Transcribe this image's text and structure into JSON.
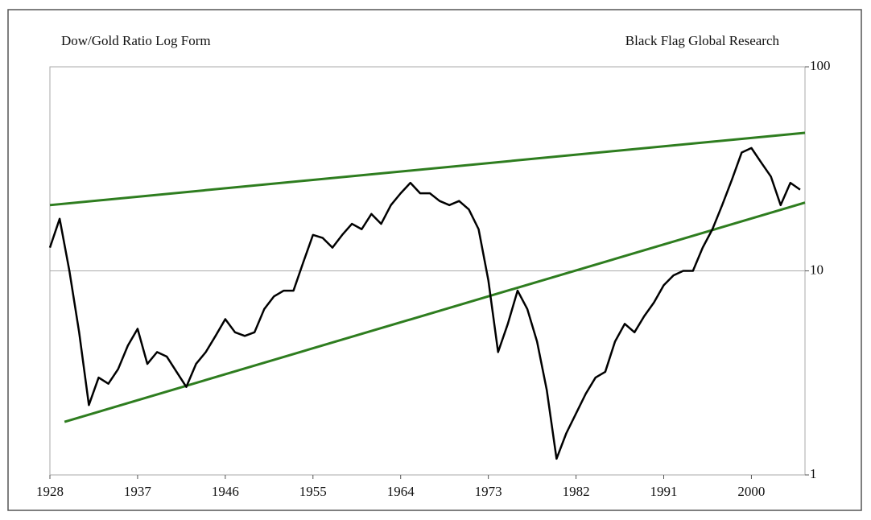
{
  "chart_data": {
    "type": "line",
    "title": "Dow/Gold Ratio Log Form",
    "subtitle": "Black Flag Global Research",
    "log_scale": true,
    "grid": true,
    "xlim": [
      1928,
      2005.5
    ],
    "xticks": [
      1928,
      1937,
      1946,
      1955,
      1964,
      1973,
      1982,
      1991,
      2000
    ],
    "ylim": [
      1,
      100
    ],
    "yticks": [
      1,
      10,
      100
    ],
    "x": [
      1928,
      1929,
      1930,
      1931,
      1932,
      1933,
      1934,
      1935,
      1936,
      1937,
      1938,
      1939,
      1940,
      1941,
      1942,
      1943,
      1944,
      1945,
      1946,
      1947,
      1948,
      1949,
      1950,
      1951,
      1952,
      1953,
      1954,
      1955,
      1956,
      1957,
      1958,
      1959,
      1960,
      1961,
      1962,
      1963,
      1964,
      1965,
      1966,
      1967,
      1968,
      1969,
      1970,
      1971,
      1972,
      1973,
      1974,
      1975,
      1976,
      1977,
      1978,
      1979,
      1980,
      1981,
      1982,
      1983,
      1984,
      1985,
      1986,
      1987,
      1988,
      1989,
      1990,
      1991,
      1992,
      1993,
      1994,
      1995,
      1996,
      1997,
      1998,
      1999,
      2000,
      2001,
      2002,
      2003,
      2004,
      2005
    ],
    "series": [
      {
        "name": "Dow/Gold Ratio",
        "color": "#000000",
        "values": [
          13,
          18,
          10,
          5,
          2.2,
          3,
          2.8,
          3.3,
          4.3,
          5.2,
          3.5,
          4,
          3.8,
          3.2,
          2.7,
          3.5,
          4,
          4.8,
          5.8,
          5,
          4.8,
          5,
          6.5,
          7.5,
          8,
          8,
          11,
          15,
          14.5,
          13,
          15,
          17,
          16,
          19,
          17,
          21,
          24,
          27,
          24,
          24,
          22,
          21,
          22,
          20,
          16,
          9,
          4,
          5.5,
          8,
          6.5,
          4.5,
          2.6,
          1.2,
          1.6,
          2,
          2.5,
          3,
          3.2,
          4.5,
          5.5,
          5,
          6,
          7,
          8.5,
          9.5,
          10,
          10,
          13,
          16,
          21,
          28,
          38,
          40,
          34,
          29,
          21,
          27,
          25
        ]
      }
    ],
    "trendlines": [
      {
        "color": "#2e7d1f",
        "x": [
          1928,
          2005.5
        ],
        "values": [
          21,
          47.5
        ]
      },
      {
        "color": "#2e7d1f",
        "x": [
          1929.5,
          2005.5
        ],
        "values": [
          1.82,
          21.6
        ]
      }
    ]
  }
}
